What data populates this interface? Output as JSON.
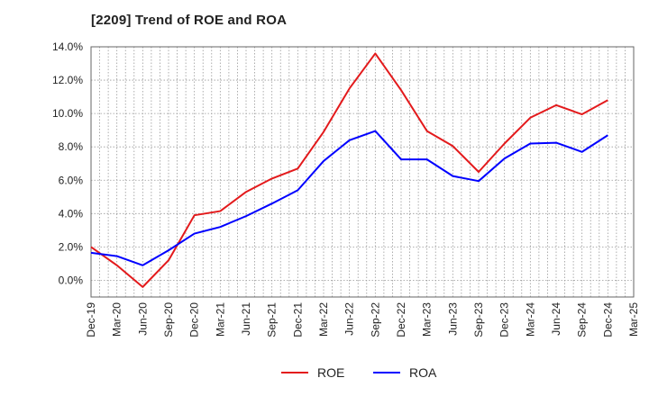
{
  "chart_data": {
    "type": "line",
    "title": "[2209]  Trend of ROE and ROA",
    "xlabel": "",
    "ylabel": "",
    "categories": [
      "Dec-19",
      "Mar-20",
      "Jun-20",
      "Sep-20",
      "Dec-20",
      "Mar-21",
      "Jun-21",
      "Sep-21",
      "Dec-21",
      "Mar-22",
      "Jun-22",
      "Sep-22",
      "Dec-22",
      "Mar-23",
      "Jun-23",
      "Sep-23",
      "Dec-23",
      "Mar-24",
      "Jun-24",
      "Sep-24",
      "Dec-24",
      "Mar-25"
    ],
    "y_ticks": [
      "14.0%",
      "12.0%",
      "10.0%",
      "8.0%",
      "6.0%",
      "4.0%",
      "2.0%",
      "0.0%"
    ],
    "ylim": [
      -1.0,
      14.0
    ],
    "grid": true,
    "legend_position": "bottom-center",
    "series": [
      {
        "name": "ROE",
        "color": "#e31a1c",
        "values": [
          2.0,
          0.9,
          -0.4,
          1.2,
          3.9,
          4.15,
          5.3,
          6.1,
          6.7,
          8.9,
          11.5,
          13.6,
          11.4,
          8.95,
          8.05,
          6.5,
          8.2,
          9.75,
          10.5,
          9.95,
          10.8,
          null
        ]
      },
      {
        "name": "ROA",
        "color": "#0000ff",
        "values": [
          1.65,
          1.45,
          0.9,
          1.8,
          2.8,
          3.2,
          3.85,
          4.6,
          5.4,
          7.15,
          8.4,
          8.95,
          7.25,
          7.25,
          6.25,
          5.95,
          7.3,
          8.2,
          8.25,
          7.7,
          8.7,
          null
        ]
      }
    ]
  }
}
